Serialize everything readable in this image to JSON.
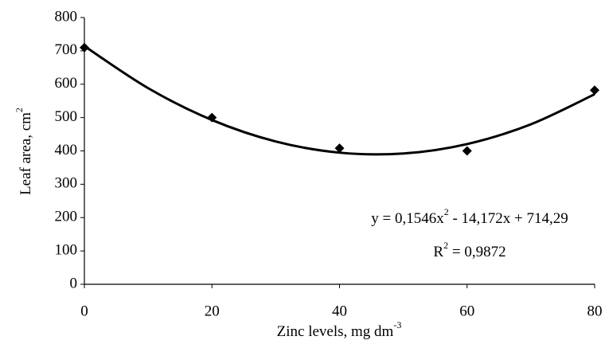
{
  "chart_data": {
    "type": "scatter",
    "x": [
      0,
      20,
      40,
      60,
      80
    ],
    "values": [
      710,
      500,
      408,
      400,
      582
    ],
    "color": "#000000",
    "trend": {
      "x": [
        0,
        10,
        20,
        30,
        40,
        50,
        60,
        70,
        80
      ],
      "values": [
        714.29,
        588.03,
        492.69,
        428.27,
        394.77,
        392.19,
        420.53,
        479.79,
        569.97
      ]
    },
    "equation": [
      "y = 0,1546x",
      "2",
      " - 14,172x + 714,29"
    ],
    "r_squared": [
      "R",
      "2",
      " = 0,9872"
    ],
    "x_label": [
      "Zinc levels, mg dm",
      "-3"
    ],
    "y_label": [
      "Leaf area, cm",
      "2"
    ],
    "xlim": [
      0,
      80
    ],
    "xticks": [
      0,
      20,
      40,
      60,
      80
    ],
    "ylim": [
      0,
      800
    ],
    "yticks": [
      0,
      100,
      200,
      300,
      400,
      500,
      600,
      700,
      800
    ],
    "grid": false
  }
}
